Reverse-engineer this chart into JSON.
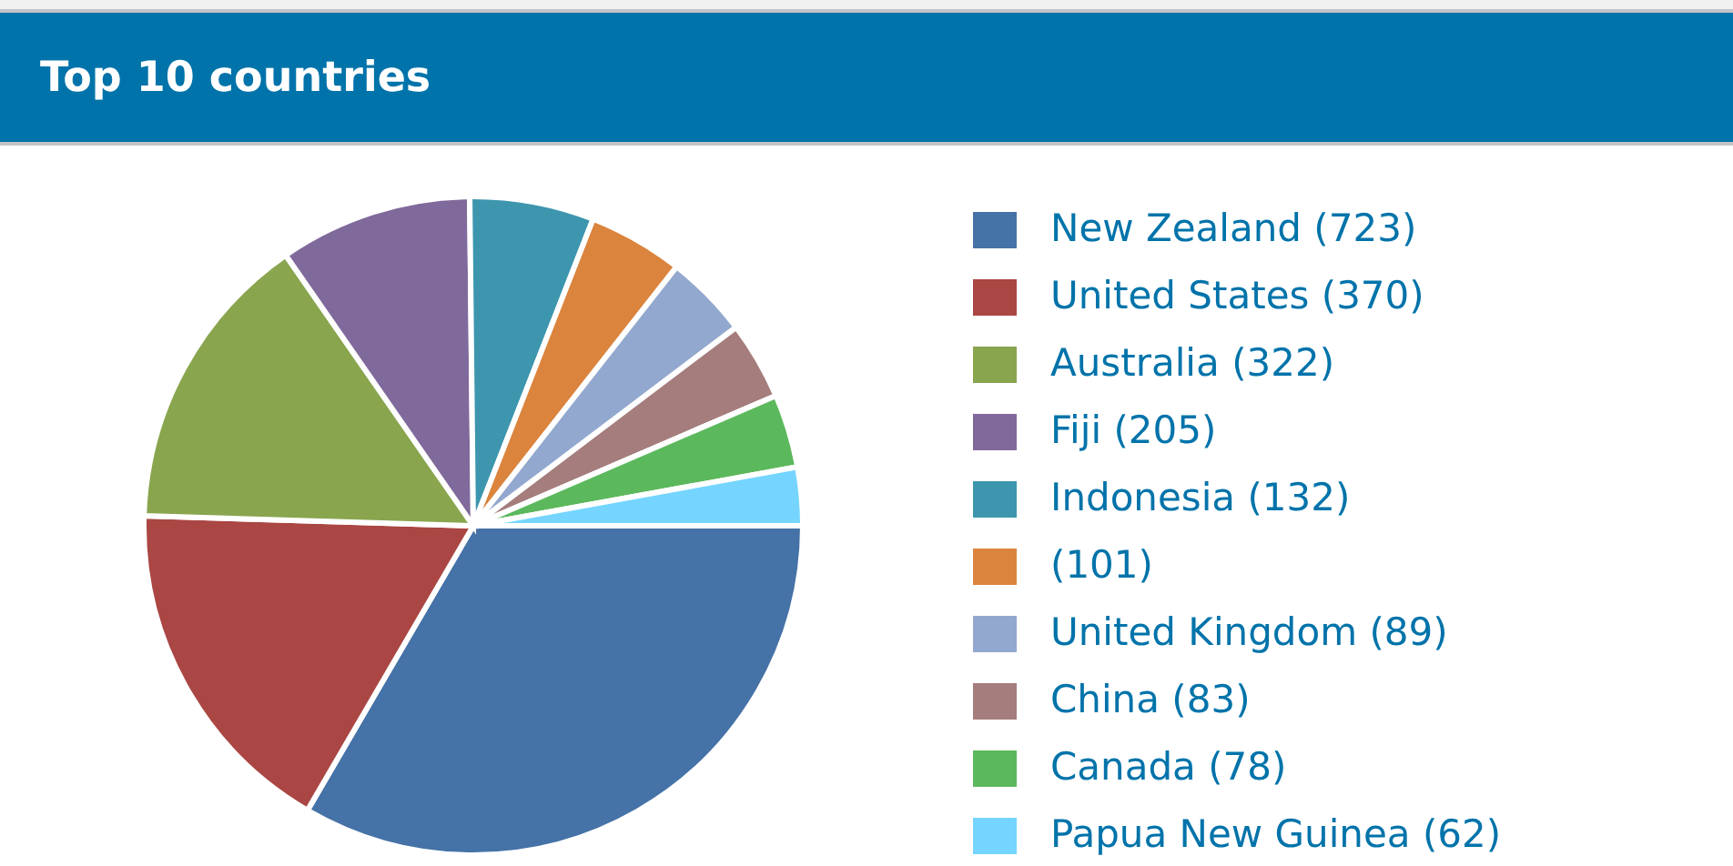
{
  "chart_data": {
    "type": "pie",
    "title": "Top 10 countries",
    "categories": [
      "New Zealand (723)",
      "United States (370)",
      "Australia (322)",
      "Fiji (205)",
      "Indonesia (132)",
      "(101)",
      "United Kingdom (89)",
      "China (83)",
      "Canada (78)",
      "Papua New Guinea (62)"
    ],
    "values": [
      723,
      370,
      322,
      205,
      132,
      101,
      89,
      83,
      78,
      62
    ],
    "colors": [
      "#4572a7",
      "#aa4643",
      "#89a54e",
      "#80699b",
      "#3d96ae",
      "#db843d",
      "#92a8ce",
      "#a47d7c",
      "#5cb85c",
      "#75d5ff"
    ],
    "legend": "right"
  }
}
